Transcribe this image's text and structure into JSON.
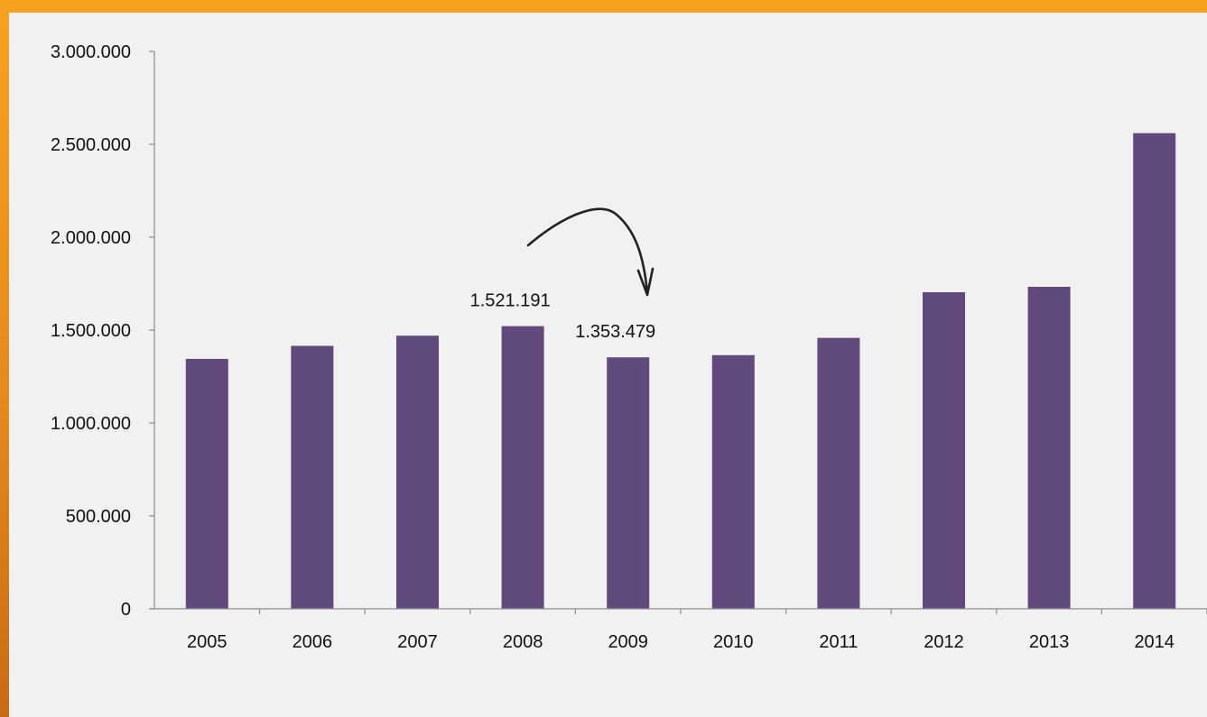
{
  "colors": {
    "bar": "#604a7b",
    "frame": "#f39c1f",
    "background": "#f1f1f1",
    "axis": "#8c8c8c"
  },
  "chart_data": {
    "type": "bar",
    "categories": [
      "2005",
      "2006",
      "2007",
      "2008",
      "2009",
      "2010",
      "2011",
      "2012",
      "2013",
      "2014"
    ],
    "values": [
      1345000,
      1415000,
      1470000,
      1521191,
      1353479,
      1365000,
      1458000,
      1704000,
      1733000,
      2560000
    ],
    "ylim": [
      0,
      3000000
    ],
    "yticks": [
      0,
      500000,
      1000000,
      1500000,
      2000000,
      2500000,
      3000000
    ],
    "ytick_labels": [
      "0",
      "500.000",
      "1.000.000",
      "1.500.000",
      "2.000.000",
      "2.500.000",
      "3.000.000"
    ],
    "annotations": [
      {
        "category": "2008",
        "text": "1.521.191"
      },
      {
        "category": "2009",
        "text": "1.353.479"
      }
    ],
    "grid": false,
    "title": "",
    "xlabel": "",
    "ylabel": ""
  }
}
